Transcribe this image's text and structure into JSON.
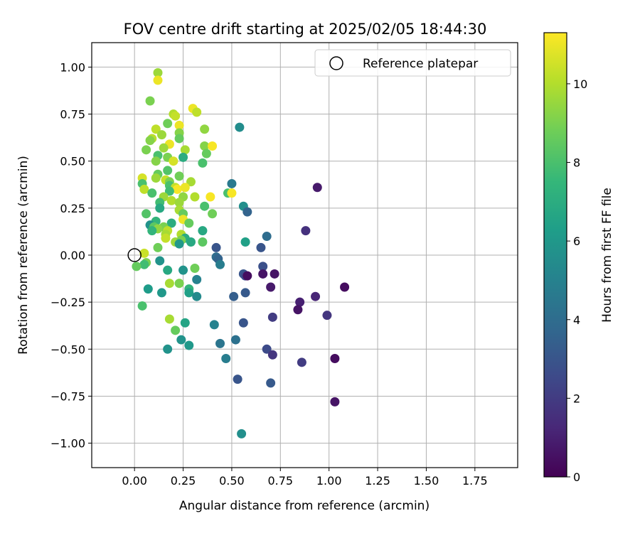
{
  "chart_data": {
    "type": "scatter",
    "title": "FOV centre drift starting at 2025/02/05 18:44:30",
    "xlabel": "Angular distance from reference (arcmin)",
    "ylabel": "Rotation from reference (arcmin)",
    "xlim": [
      -0.22,
      1.97
    ],
    "ylim": [
      -1.13,
      1.13
    ],
    "xticks": [
      0.0,
      0.25,
      0.5,
      0.75,
      1.0,
      1.25,
      1.5,
      1.75
    ],
    "xtick_labels": [
      "0.00",
      "0.25",
      "0.50",
      "0.75",
      "1.00",
      "1.25",
      "1.50",
      "1.75"
    ],
    "yticks": [
      -1.0,
      -0.75,
      -0.5,
      -0.25,
      0.0,
      0.25,
      0.5,
      0.75,
      1.0
    ],
    "ytick_labels": [
      "−1.00",
      "−0.75",
      "−0.50",
      "−0.25",
      "0.00",
      "0.25",
      "0.50",
      "0.75",
      "1.00"
    ],
    "grid": true,
    "legend": {
      "location": "top-right",
      "entries": [
        "Reference platepar"
      ]
    },
    "reference_point": {
      "name": "Reference platepar",
      "x": 0.0,
      "y": 0.0
    },
    "colorbar": {
      "label": "Hours from first FF file",
      "range": [
        0,
        11.3
      ],
      "ticks": [
        0,
        2,
        4,
        6,
        8,
        10
      ],
      "tick_labels": [
        "0",
        "2",
        "4",
        "6",
        "8",
        "10"
      ],
      "colormap": "viridis",
      "colormap_stops": [
        "#440154",
        "#482878",
        "#3e4989",
        "#31688e",
        "#26828e",
        "#1f9e89",
        "#35b779",
        "#6ece58",
        "#b5de2b",
        "#fde725"
      ]
    },
    "points": [
      {
        "x": 0.12,
        "y": 0.97,
        "c": 9.6
      },
      {
        "x": 0.12,
        "y": 0.93,
        "c": 11.0
      },
      {
        "x": 0.08,
        "y": 0.82,
        "c": 9.0
      },
      {
        "x": 0.2,
        "y": 0.75,
        "c": 10.0
      },
      {
        "x": 0.21,
        "y": 0.74,
        "c": 10.3
      },
      {
        "x": 0.3,
        "y": 0.78,
        "c": 11.0
      },
      {
        "x": 0.32,
        "y": 0.76,
        "c": 10.2
      },
      {
        "x": 0.54,
        "y": 0.68,
        "c": 5.5
      },
      {
        "x": 0.17,
        "y": 0.7,
        "c": 8.8
      },
      {
        "x": 0.23,
        "y": 0.69,
        "c": 11.0
      },
      {
        "x": 0.11,
        "y": 0.67,
        "c": 10.2
      },
      {
        "x": 0.36,
        "y": 0.67,
        "c": 9.4
      },
      {
        "x": 0.23,
        "y": 0.65,
        "c": 9.2
      },
      {
        "x": 0.14,
        "y": 0.64,
        "c": 9.6
      },
      {
        "x": 0.09,
        "y": 0.62,
        "c": 10.1
      },
      {
        "x": 0.08,
        "y": 0.61,
        "c": 9.2
      },
      {
        "x": 0.23,
        "y": 0.62,
        "c": 8.6
      },
      {
        "x": 0.18,
        "y": 0.59,
        "c": 11.0
      },
      {
        "x": 0.36,
        "y": 0.58,
        "c": 9.2
      },
      {
        "x": 0.4,
        "y": 0.58,
        "c": 11.2
      },
      {
        "x": 0.15,
        "y": 0.57,
        "c": 9.6
      },
      {
        "x": 0.26,
        "y": 0.56,
        "c": 9.8
      },
      {
        "x": 0.06,
        "y": 0.56,
        "c": 9.0
      },
      {
        "x": 0.37,
        "y": 0.54,
        "c": 8.6
      },
      {
        "x": 0.12,
        "y": 0.53,
        "c": 8.0
      },
      {
        "x": 0.25,
        "y": 0.52,
        "c": 7.0
      },
      {
        "x": 0.17,
        "y": 0.52,
        "c": 9.0
      },
      {
        "x": 0.11,
        "y": 0.5,
        "c": 9.2
      },
      {
        "x": 0.2,
        "y": 0.5,
        "c": 10.6
      },
      {
        "x": 0.35,
        "y": 0.49,
        "c": 8.0
      },
      {
        "x": 0.17,
        "y": 0.45,
        "c": 8.2
      },
      {
        "x": 0.12,
        "y": 0.43,
        "c": 8.6
      },
      {
        "x": 0.23,
        "y": 0.42,
        "c": 8.8
      },
      {
        "x": 0.04,
        "y": 0.41,
        "c": 10.6
      },
      {
        "x": 0.11,
        "y": 0.41,
        "c": 9.6
      },
      {
        "x": 0.16,
        "y": 0.4,
        "c": 10.3
      },
      {
        "x": 0.18,
        "y": 0.39,
        "c": 9.0
      },
      {
        "x": 0.29,
        "y": 0.39,
        "c": 9.8
      },
      {
        "x": 0.04,
        "y": 0.38,
        "c": 8.0
      },
      {
        "x": 0.5,
        "y": 0.38,
        "c": 4.6
      },
      {
        "x": 0.18,
        "y": 0.37,
        "c": 8.0
      },
      {
        "x": 0.21,
        "y": 0.36,
        "c": 10.3
      },
      {
        "x": 0.22,
        "y": 0.35,
        "c": 11.2
      },
      {
        "x": 0.26,
        "y": 0.36,
        "c": 11.0
      },
      {
        "x": 0.05,
        "y": 0.35,
        "c": 10.2
      },
      {
        "x": 0.18,
        "y": 0.34,
        "c": 7.8
      },
      {
        "x": 0.09,
        "y": 0.33,
        "c": 8.0
      },
      {
        "x": 0.48,
        "y": 0.33,
        "c": 8.0
      },
      {
        "x": 0.5,
        "y": 0.33,
        "c": 11.2
      },
      {
        "x": 0.94,
        "y": 0.36,
        "c": 0.8
      },
      {
        "x": 0.15,
        "y": 0.31,
        "c": 9.6
      },
      {
        "x": 0.25,
        "y": 0.31,
        "c": 9.4
      },
      {
        "x": 0.31,
        "y": 0.31,
        "c": 10.0
      },
      {
        "x": 0.39,
        "y": 0.31,
        "c": 11.2
      },
      {
        "x": 0.19,
        "y": 0.29,
        "c": 10.0
      },
      {
        "x": 0.13,
        "y": 0.28,
        "c": 7.8
      },
      {
        "x": 0.23,
        "y": 0.28,
        "c": 9.6
      },
      {
        "x": 0.13,
        "y": 0.25,
        "c": 6.8
      },
      {
        "x": 0.36,
        "y": 0.26,
        "c": 8.0
      },
      {
        "x": 0.56,
        "y": 0.26,
        "c": 5.6
      },
      {
        "x": 0.23,
        "y": 0.24,
        "c": 9.8
      },
      {
        "x": 0.58,
        "y": 0.23,
        "c": 3.6
      },
      {
        "x": 0.06,
        "y": 0.22,
        "c": 8.2
      },
      {
        "x": 0.25,
        "y": 0.22,
        "c": 8.6
      },
      {
        "x": 0.4,
        "y": 0.22,
        "c": 8.8
      },
      {
        "x": 0.25,
        "y": 0.19,
        "c": 11.0
      },
      {
        "x": 0.11,
        "y": 0.18,
        "c": 7.4
      },
      {
        "x": 0.19,
        "y": 0.17,
        "c": 7.0
      },
      {
        "x": 0.28,
        "y": 0.17,
        "c": 8.6
      },
      {
        "x": 0.08,
        "y": 0.16,
        "c": 5.8
      },
      {
        "x": 0.1,
        "y": 0.15,
        "c": 8.4
      },
      {
        "x": 0.15,
        "y": 0.15,
        "c": 9.0
      },
      {
        "x": 0.12,
        "y": 0.14,
        "c": 9.4
      },
      {
        "x": 0.09,
        "y": 0.13,
        "c": 7.4
      },
      {
        "x": 0.17,
        "y": 0.13,
        "c": 10.2
      },
      {
        "x": 0.35,
        "y": 0.13,
        "c": 6.8
      },
      {
        "x": 0.88,
        "y": 0.13,
        "c": 1.6
      },
      {
        "x": 0.16,
        "y": 0.11,
        "c": 9.8
      },
      {
        "x": 0.24,
        "y": 0.11,
        "c": 10.0
      },
      {
        "x": 0.16,
        "y": 0.09,
        "c": 10.3
      },
      {
        "x": 0.26,
        "y": 0.09,
        "c": 7.0
      },
      {
        "x": 0.68,
        "y": 0.1,
        "c": 4.0
      },
      {
        "x": 0.21,
        "y": 0.07,
        "c": 9.6
      },
      {
        "x": 0.24,
        "y": 0.08,
        "c": 9.0
      },
      {
        "x": 0.29,
        "y": 0.07,
        "c": 6.8
      },
      {
        "x": 0.35,
        "y": 0.07,
        "c": 8.4
      },
      {
        "x": 0.57,
        "y": 0.07,
        "c": 6.4
      },
      {
        "x": 0.23,
        "y": 0.06,
        "c": 6.0
      },
      {
        "x": 0.12,
        "y": 0.04,
        "c": 8.8
      },
      {
        "x": 0.42,
        "y": 0.04,
        "c": 3.0
      },
      {
        "x": 0.65,
        "y": 0.04,
        "c": 3.0
      },
      {
        "x": 0.05,
        "y": 0.01,
        "c": 10.4
      },
      {
        "x": 0.42,
        "y": -0.01,
        "c": 4.0
      },
      {
        "x": 0.43,
        "y": -0.02,
        "c": 3.6
      },
      {
        "x": 0.13,
        "y": -0.03,
        "c": 5.8
      },
      {
        "x": 0.06,
        "y": -0.04,
        "c": 9.0
      },
      {
        "x": 0.05,
        "y": -0.05,
        "c": 7.8
      },
      {
        "x": 0.44,
        "y": -0.05,
        "c": 4.8
      },
      {
        "x": 0.01,
        "y": -0.06,
        "c": 8.6
      },
      {
        "x": 0.66,
        "y": -0.06,
        "c": 2.8
      },
      {
        "x": 0.17,
        "y": -0.08,
        "c": 6.8
      },
      {
        "x": 0.25,
        "y": -0.08,
        "c": 5.8
      },
      {
        "x": 0.31,
        "y": -0.07,
        "c": 8.8
      },
      {
        "x": 0.66,
        "y": -0.1,
        "c": 0.6
      },
      {
        "x": 0.56,
        "y": -0.1,
        "c": 3.0
      },
      {
        "x": 0.57,
        "y": -0.11,
        "c": 2.6
      },
      {
        "x": 0.58,
        "y": -0.11,
        "c": 0.4
      },
      {
        "x": 0.72,
        "y": -0.1,
        "c": 0.6
      },
      {
        "x": 0.32,
        "y": -0.13,
        "c": 5.0
      },
      {
        "x": 0.18,
        "y": -0.15,
        "c": 9.8
      },
      {
        "x": 0.23,
        "y": -0.15,
        "c": 9.0
      },
      {
        "x": 0.07,
        "y": -0.18,
        "c": 6.2
      },
      {
        "x": 0.28,
        "y": -0.18,
        "c": 7.4
      },
      {
        "x": 0.7,
        "y": -0.17,
        "c": 0.8
      },
      {
        "x": 1.08,
        "y": -0.17,
        "c": 0.4
      },
      {
        "x": 0.14,
        "y": -0.2,
        "c": 6.0
      },
      {
        "x": 0.28,
        "y": -0.2,
        "c": 6.4
      },
      {
        "x": 0.57,
        "y": -0.2,
        "c": 3.2
      },
      {
        "x": 0.32,
        "y": -0.22,
        "c": 5.4
      },
      {
        "x": 0.51,
        "y": -0.22,
        "c": 3.4
      },
      {
        "x": 0.93,
        "y": -0.22,
        "c": 1.2
      },
      {
        "x": 0.85,
        "y": -0.25,
        "c": 1.0
      },
      {
        "x": 0.04,
        "y": -0.27,
        "c": 8.0
      },
      {
        "x": 0.84,
        "y": -0.29,
        "c": 0.6
      },
      {
        "x": 0.99,
        "y": -0.32,
        "c": 1.8
      },
      {
        "x": 0.71,
        "y": -0.33,
        "c": 2.0
      },
      {
        "x": 0.18,
        "y": -0.34,
        "c": 9.8
      },
      {
        "x": 0.26,
        "y": -0.36,
        "c": 6.6
      },
      {
        "x": 0.41,
        "y": -0.37,
        "c": 5.0
      },
      {
        "x": 0.56,
        "y": -0.36,
        "c": 3.0
      },
      {
        "x": 0.21,
        "y": -0.4,
        "c": 8.6
      },
      {
        "x": 0.24,
        "y": -0.45,
        "c": 5.8
      },
      {
        "x": 0.52,
        "y": -0.45,
        "c": 4.2
      },
      {
        "x": 0.44,
        "y": -0.47,
        "c": 4.4
      },
      {
        "x": 0.28,
        "y": -0.48,
        "c": 6.0
      },
      {
        "x": 0.17,
        "y": -0.5,
        "c": 5.8
      },
      {
        "x": 0.68,
        "y": -0.5,
        "c": 2.6
      },
      {
        "x": 0.71,
        "y": -0.53,
        "c": 1.8
      },
      {
        "x": 0.47,
        "y": -0.55,
        "c": 4.8
      },
      {
        "x": 1.03,
        "y": -0.55,
        "c": 0.4
      },
      {
        "x": 0.86,
        "y": -0.57,
        "c": 2.0
      },
      {
        "x": 0.53,
        "y": -0.66,
        "c": 3.0
      },
      {
        "x": 0.7,
        "y": -0.68,
        "c": 3.2
      },
      {
        "x": 1.03,
        "y": -0.78,
        "c": 0.6
      },
      {
        "x": 0.55,
        "y": -0.95,
        "c": 5.6
      }
    ]
  }
}
